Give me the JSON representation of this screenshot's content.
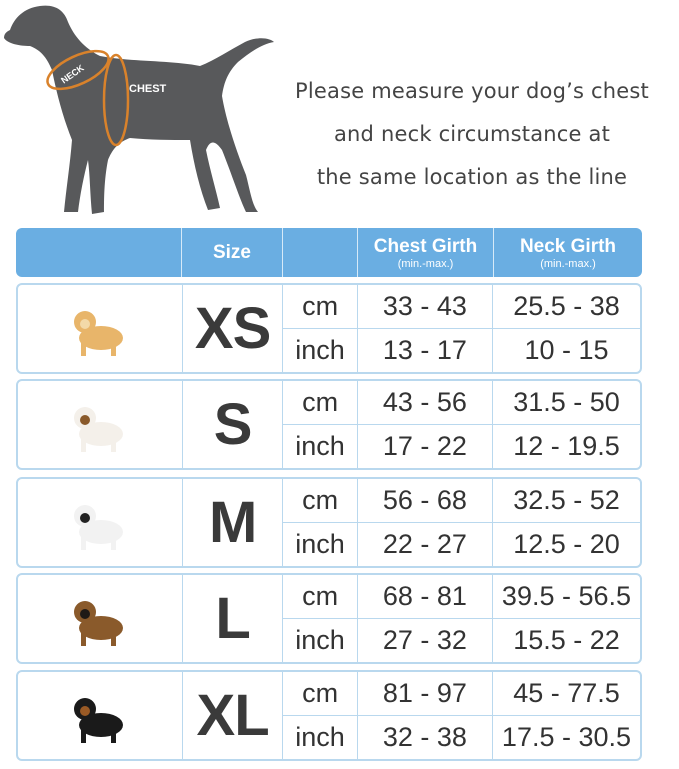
{
  "figure": {
    "neck_label": "NECK",
    "chest_label": "CHEST",
    "dog_color": "#58595b",
    "measure_color": "#d9822b"
  },
  "instructions": [
    "Please measure your dog’s chest",
    "and neck circumstance at",
    "the same location  as the line"
  ],
  "table": {
    "header": {
      "size": "Size",
      "chest": "Chest Girth",
      "chest_sub": "(min.-max.)",
      "neck": "Neck Girth",
      "neck_sub": "(min.-max.)",
      "color": "#6aaee2"
    },
    "rows": [
      {
        "size": "XS",
        "dog": "chihuahua",
        "units": [
          "cm",
          "inch"
        ],
        "chest": [
          "33 - 43",
          "13 - 17"
        ],
        "neck": [
          "25.5 - 38",
          "10 - 15"
        ]
      },
      {
        "size": "S",
        "dog": "jack-russell",
        "units": [
          "cm",
          "inch"
        ],
        "chest": [
          "43 - 56",
          "17 - 22"
        ],
        "neck": [
          "31.5 - 50",
          "12 - 19.5"
        ]
      },
      {
        "size": "M",
        "dog": "french-bulldog",
        "units": [
          "cm",
          "inch"
        ],
        "chest": [
          "56 - 68",
          "22 - 27"
        ],
        "neck": [
          "32.5 - 52",
          "12.5 - 20"
        ]
      },
      {
        "size": "L",
        "dog": "german-shepherd",
        "units": [
          "cm",
          "inch"
        ],
        "chest": [
          "68 - 81",
          "27 - 32"
        ],
        "neck": [
          "39.5 - 56.5",
          "15.5 - 22"
        ]
      },
      {
        "size": "XL",
        "dog": "doberman",
        "units": [
          "cm",
          "inch"
        ],
        "chest": [
          "81 - 97",
          "32 - 38"
        ],
        "neck": [
          "45 - 77.5",
          "17.5 - 30.5"
        ]
      }
    ]
  }
}
